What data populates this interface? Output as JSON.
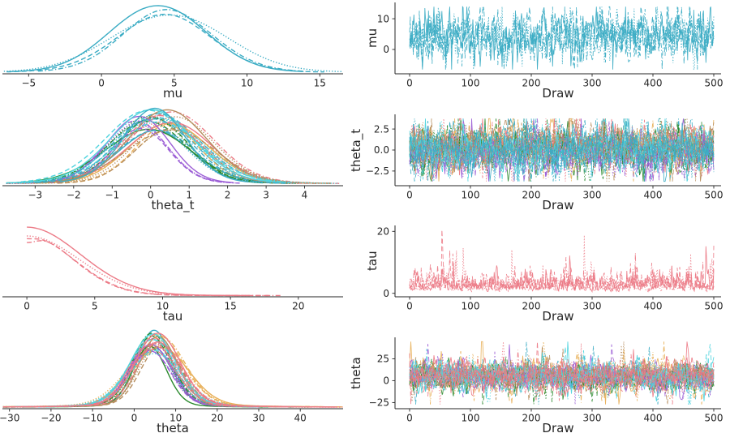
{
  "figure": {
    "background": "#ffffff",
    "text_color": "#262626",
    "n_chains": 4,
    "linestyles": [
      "solid",
      "dashed",
      "dotted",
      "dashdot"
    ],
    "palette": {
      "teal": "#3bacc4",
      "amber": "#e8b059",
      "green": "#2b8a2e",
      "salmon": "#ec7b87",
      "purple": "#9c5fd6",
      "tan": "#b68d5e",
      "turquoise": "#4fd4de"
    }
  },
  "chart_data": [
    {
      "variable": "mu",
      "kde": {
        "type": "kde",
        "xlabel": "mu",
        "xlim": [
          -6.8,
          16.6
        ],
        "xticks": [
          {
            "v": -5,
            "label": "−5"
          },
          {
            "v": 0,
            "label": "0"
          },
          {
            "v": 5,
            "label": "5"
          },
          {
            "v": 10,
            "label": "10"
          },
          {
            "v": 15,
            "label": "15"
          }
        ],
        "series": [
          {
            "color": "#3bacc4",
            "center": 4.4,
            "sd": 3.5,
            "span": 3.0,
            "tail": 0.02,
            "kind": "normal"
          }
        ]
      },
      "trace": {
        "type": "line",
        "xlabel": "Draw",
        "ylabel": "mu",
        "n_draws": 500,
        "xlim": [
          -24,
          512
        ],
        "ylim": [
          -7.9,
          15.3
        ],
        "xticks": [
          {
            "v": 0,
            "label": "0"
          },
          {
            "v": 100,
            "label": "100"
          },
          {
            "v": 200,
            "label": "200"
          },
          {
            "v": 300,
            "label": "300"
          },
          {
            "v": 400,
            "label": "400"
          },
          {
            "v": 500,
            "label": "500"
          }
        ],
        "yticks": [
          {
            "v": 0,
            "label": "0"
          },
          {
            "v": 10,
            "label": "10"
          }
        ],
        "series": [
          {
            "color": "#3bacc4",
            "mean": 4.4,
            "sd": 3.1,
            "kind": "normal"
          }
        ]
      }
    },
    {
      "variable": "theta_t",
      "kde": {
        "type": "kde",
        "xlabel": "theta_t",
        "xlim": [
          -3.85,
          5.0
        ],
        "xticks": [
          {
            "v": -3,
            "label": "−3"
          },
          {
            "v": -2,
            "label": "−2"
          },
          {
            "v": -1,
            "label": "−1"
          },
          {
            "v": 0,
            "label": "0"
          },
          {
            "v": 1,
            "label": "1"
          },
          {
            "v": 2,
            "label": "2"
          },
          {
            "v": 3,
            "label": "3"
          },
          {
            "v": 4,
            "label": "4"
          }
        ],
        "series": [
          {
            "color": "#3bacc4",
            "center": 0.2,
            "sd": 1.0,
            "span": 3.1,
            "tail": 0.05,
            "kind": "normal"
          },
          {
            "color": "#e8b059",
            "center": 0.55,
            "sd": 0.95,
            "span": 3.1,
            "tail": 0.05,
            "kind": "normal"
          },
          {
            "color": "#2b8a2e",
            "center": -0.05,
            "sd": 1.05,
            "span": 3.1,
            "tail": 0.05,
            "kind": "normal"
          },
          {
            "color": "#ec7b87",
            "center": 0.35,
            "sd": 1.0,
            "span": 3.8,
            "tail": 0.05,
            "kind": "normal"
          },
          {
            "color": "#9c5fd6",
            "center": -0.35,
            "sd": 0.85,
            "span": 3.1,
            "tail": 0.05,
            "kind": "normal"
          },
          {
            "color": "#b68d5e",
            "center": 0.6,
            "sd": 1.0,
            "span": 3.2,
            "tail": 0.05,
            "kind": "normal"
          },
          {
            "color": "#4fd4de",
            "center": 0.1,
            "sd": 1.1,
            "span": 3.1,
            "tail": 0.05,
            "kind": "normal"
          },
          {
            "color": "#3bacc4",
            "center": 0.0,
            "sd": 0.95,
            "span": 3.1,
            "tail": 0.05,
            "kind": "normal"
          }
        ]
      },
      "trace": {
        "type": "line",
        "xlabel": "Draw",
        "ylabel": "theta_t",
        "n_draws": 500,
        "xlim": [
          -24,
          512
        ],
        "ylim": [
          -4.25,
          4.25
        ],
        "xticks": [
          {
            "v": 0,
            "label": "0"
          },
          {
            "v": 100,
            "label": "100"
          },
          {
            "v": 200,
            "label": "200"
          },
          {
            "v": 300,
            "label": "300"
          },
          {
            "v": 400,
            "label": "400"
          },
          {
            "v": 500,
            "label": "500"
          }
        ],
        "yticks": [
          {
            "v": 2.5,
            "label": "2.5"
          },
          {
            "v": 0,
            "label": "0.0"
          },
          {
            "v": -2.5,
            "label": "−2.5"
          }
        ],
        "series": [
          {
            "color": "#3bacc4",
            "mean": 0.2,
            "sd": 1.05,
            "kind": "normal"
          },
          {
            "color": "#e8b059",
            "mean": 0.55,
            "sd": 1.0,
            "kind": "normal"
          },
          {
            "color": "#2b8a2e",
            "mean": -0.05,
            "sd": 1.05,
            "kind": "normal"
          },
          {
            "color": "#ec7b87",
            "mean": 0.35,
            "sd": 1.0,
            "kind": "normal"
          },
          {
            "color": "#9c5fd6",
            "mean": -0.35,
            "sd": 0.95,
            "kind": "normal"
          },
          {
            "color": "#b68d5e",
            "mean": 0.6,
            "sd": 1.0,
            "kind": "normal"
          },
          {
            "color": "#4fd4de",
            "mean": 0.1,
            "sd": 1.1,
            "kind": "normal"
          },
          {
            "color": "#3bacc4",
            "mean": 0.0,
            "sd": 1.0,
            "kind": "normal"
          }
        ]
      }
    },
    {
      "variable": "tau",
      "kde": {
        "type": "kde",
        "xlabel": "tau",
        "xlim": [
          -1.8,
          23.3
        ],
        "xticks": [
          {
            "v": 0,
            "label": "0"
          },
          {
            "v": 5,
            "label": "5"
          },
          {
            "v": 10,
            "label": "10"
          },
          {
            "v": 15,
            "label": "15"
          },
          {
            "v": 20,
            "label": "20"
          }
        ],
        "series": [
          {
            "color": "#ec7b87",
            "scale": 3.6,
            "kind": "half"
          }
        ]
      },
      "trace": {
        "type": "line",
        "xlabel": "Draw",
        "ylabel": "tau",
        "n_draws": 500,
        "xlim": [
          -24,
          512
        ],
        "ylim": [
          -1.12,
          21.9
        ],
        "xticks": [
          {
            "v": 0,
            "label": "0"
          },
          {
            "v": 100,
            "label": "100"
          },
          {
            "v": 200,
            "label": "200"
          },
          {
            "v": 300,
            "label": "300"
          },
          {
            "v": 400,
            "label": "400"
          },
          {
            "v": 500,
            "label": "500"
          }
        ],
        "yticks": [
          {
            "v": 0,
            "label": "0"
          },
          {
            "v": 20,
            "label": "20"
          }
        ],
        "series": [
          {
            "color": "#ec7b87",
            "scale": 2.9,
            "kind": "half"
          }
        ]
      }
    },
    {
      "variable": "theta",
      "kde": {
        "type": "kde",
        "xlabel": "theta",
        "xlim": [
          -31.7,
          50.3
        ],
        "xticks": [
          {
            "v": -30,
            "label": "−30"
          },
          {
            "v": -20,
            "label": "−20"
          },
          {
            "v": -10,
            "label": "−10"
          },
          {
            "v": 0,
            "label": "0"
          },
          {
            "v": 10,
            "label": "10"
          },
          {
            "v": 20,
            "label": "20"
          },
          {
            "v": 30,
            "label": "30"
          },
          {
            "v": 40,
            "label": "40"
          }
        ],
        "series": [
          {
            "color": "#3bacc4",
            "center": 4.5,
            "sd": 4.5,
            "span": 4.0,
            "tail": 0.06,
            "kind": "normal"
          },
          {
            "color": "#e8b059",
            "center": 5.5,
            "sd": 6.0,
            "span": 7.0,
            "tail": 0.06,
            "kind": "normal"
          },
          {
            "color": "#2b8a2e",
            "center": 3.8,
            "sd": 4.2,
            "span": 6.5,
            "tail": 0.06,
            "kind": "normal"
          },
          {
            "color": "#ec7b87",
            "center": 5.0,
            "sd": 5.2,
            "span": 5.0,
            "tail": 0.06,
            "kind": "normal"
          },
          {
            "color": "#9c5fd6",
            "center": 4.2,
            "sd": 4.8,
            "span": 4.5,
            "tail": 0.06,
            "kind": "normal"
          },
          {
            "color": "#b68d5e",
            "center": 6.0,
            "sd": 5.0,
            "span": 4.0,
            "tail": 0.06,
            "kind": "normal"
          },
          {
            "color": "#4fd4de",
            "center": 4.8,
            "sd": 5.8,
            "span": 5.0,
            "tail": 0.06,
            "kind": "normal"
          },
          {
            "color": "#ec7b87",
            "center": 5.2,
            "sd": 5.0,
            "span": 7.5,
            "tail": 0.06,
            "kind": "normal"
          }
        ]
      },
      "trace": {
        "type": "line",
        "xlabel": "Draw",
        "ylabel": "theta",
        "n_draws": 500,
        "xlim": [
          -24,
          512
        ],
        "ylim": [
          -32,
          49.5
        ],
        "xticks": [
          {
            "v": 0,
            "label": "0"
          },
          {
            "v": 100,
            "label": "100"
          },
          {
            "v": 200,
            "label": "200"
          },
          {
            "v": 300,
            "label": "300"
          },
          {
            "v": 400,
            "label": "400"
          },
          {
            "v": 500,
            "label": "500"
          }
        ],
        "yticks": [
          {
            "v": 25,
            "label": "25"
          },
          {
            "v": 0,
            "label": "0"
          },
          {
            "v": -25,
            "label": "−25"
          }
        ],
        "series": [
          {
            "color": "#3bacc4",
            "mean": 4.5,
            "sd": 6.0,
            "kind": "normal"
          },
          {
            "color": "#e8b059",
            "mean": 5.5,
            "sd": 7.5,
            "kind": "normal"
          },
          {
            "color": "#2b8a2e",
            "mean": 3.8,
            "sd": 6.0,
            "kind": "normal"
          },
          {
            "color": "#ec7b87",
            "mean": 5.0,
            "sd": 6.5,
            "kind": "normal"
          },
          {
            "color": "#9c5fd6",
            "mean": 4.2,
            "sd": 6.0,
            "kind": "normal"
          },
          {
            "color": "#b68d5e",
            "mean": 6.0,
            "sd": 6.0,
            "kind": "normal"
          },
          {
            "color": "#4fd4de",
            "mean": 4.8,
            "sd": 7.0,
            "kind": "normal"
          },
          {
            "color": "#ec7b87",
            "mean": 5.2,
            "sd": 6.5,
            "kind": "normal"
          }
        ]
      }
    }
  ]
}
